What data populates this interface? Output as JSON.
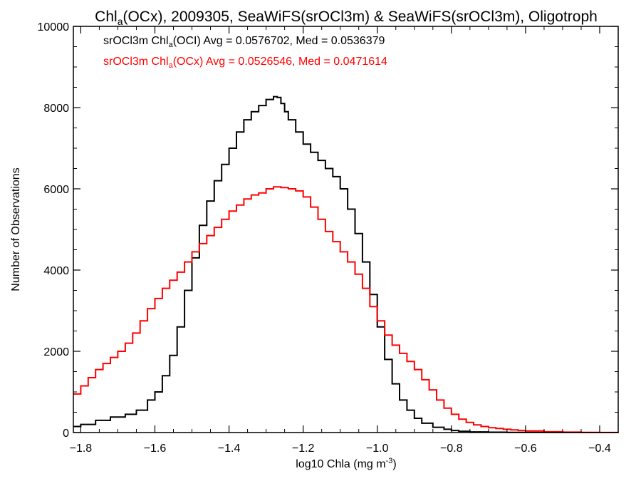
{
  "chart_data": {
    "type": "line",
    "title": {
      "part1": "Chl",
      "sub": "a",
      "part2": "(OCx), 2009305, SeaWiFS(srOCl3m) & SeaWiFS(srOCl3m), Oligotroph"
    },
    "xlabel": {
      "main": "log10 Chla (mg m",
      "sup": "-3",
      "end": ")"
    },
    "ylabel": "Number of Observations",
    "xlim": [
      -1.82,
      -0.35
    ],
    "ylim": [
      0,
      10000
    ],
    "x_ticks": [
      -1.8,
      -1.6,
      -1.4,
      -1.2,
      -1.0,
      -0.8,
      -0.6,
      -0.4
    ],
    "x_tick_labels": [
      "−1.8",
      "−1.6",
      "−1.4",
      "−1.2",
      "−1.0",
      "−0.8",
      "−0.6",
      "−0.4"
    ],
    "y_ticks": [
      0,
      2000,
      4000,
      6000,
      8000,
      10000
    ],
    "y_tick_labels": [
      "0",
      "2000",
      "4000",
      "6000",
      "8000",
      "10000"
    ],
    "grid": false,
    "legend_position": "top-left",
    "legend": [
      {
        "pre": "srOCl3m Chl",
        "sub": "a",
        "post": "(OCI) Avg = 0.0576702, Med = 0.0536379",
        "color": "#000000"
      },
      {
        "pre": "srOCl3m Chl",
        "sub": "a",
        "post": "(OCx) Avg = 0.0526546, Med = 0.0471614",
        "color": "#ff0000"
      }
    ],
    "series": [
      {
        "color": "#000000",
        "x": [
          -1.82,
          -1.8,
          -1.76,
          -1.72,
          -1.68,
          -1.65,
          -1.62,
          -1.6,
          -1.58,
          -1.56,
          -1.54,
          -1.52,
          -1.5,
          -1.48,
          -1.46,
          -1.44,
          -1.42,
          -1.4,
          -1.38,
          -1.36,
          -1.34,
          -1.32,
          -1.3,
          -1.28,
          -1.27,
          -1.26,
          -1.25,
          -1.24,
          -1.22,
          -1.2,
          -1.18,
          -1.16,
          -1.14,
          -1.12,
          -1.1,
          -1.08,
          -1.06,
          -1.04,
          -1.02,
          -1.0,
          -0.98,
          -0.96,
          -0.94,
          -0.92,
          -0.9,
          -0.88,
          -0.85,
          -0.82,
          -0.8,
          -0.78,
          -0.75,
          -0.7,
          -0.65,
          -0.6,
          -0.55,
          -0.5,
          -0.45,
          -0.4,
          -0.35
        ],
        "values": [
          150,
          200,
          300,
          380,
          450,
          550,
          800,
          1000,
          1400,
          1900,
          2600,
          3500,
          4300,
          5100,
          5700,
          6200,
          6600,
          7000,
          7400,
          7700,
          7900,
          8050,
          8200,
          8270,
          8250,
          8100,
          7900,
          7700,
          7400,
          7100,
          6900,
          6700,
          6500,
          6300,
          6000,
          5500,
          4900,
          4200,
          3400,
          2600,
          1800,
          1200,
          800,
          550,
          350,
          230,
          130,
          80,
          50,
          30,
          15,
          8,
          5,
          3,
          2,
          1,
          0,
          0,
          0
        ]
      },
      {
        "color": "#ff0000",
        "x": [
          -1.82,
          -1.8,
          -1.78,
          -1.76,
          -1.74,
          -1.72,
          -1.7,
          -1.68,
          -1.66,
          -1.64,
          -1.62,
          -1.6,
          -1.58,
          -1.56,
          -1.54,
          -1.52,
          -1.5,
          -1.48,
          -1.46,
          -1.44,
          -1.42,
          -1.4,
          -1.38,
          -1.36,
          -1.34,
          -1.32,
          -1.3,
          -1.28,
          -1.26,
          -1.24,
          -1.22,
          -1.2,
          -1.18,
          -1.16,
          -1.14,
          -1.12,
          -1.1,
          -1.08,
          -1.06,
          -1.04,
          -1.02,
          -1.0,
          -0.98,
          -0.96,
          -0.94,
          -0.92,
          -0.9,
          -0.88,
          -0.86,
          -0.84,
          -0.82,
          -0.8,
          -0.78,
          -0.76,
          -0.74,
          -0.72,
          -0.7,
          -0.68,
          -0.66,
          -0.64,
          -0.62,
          -0.6,
          -0.55,
          -0.5,
          -0.45,
          -0.4,
          -0.35
        ],
        "values": [
          950,
          1150,
          1350,
          1550,
          1700,
          1850,
          2000,
          2200,
          2450,
          2750,
          3050,
          3300,
          3550,
          3750,
          3950,
          4200,
          4450,
          4650,
          4850,
          5050,
          5250,
          5450,
          5600,
          5750,
          5850,
          5900,
          6000,
          6050,
          6030,
          6000,
          5950,
          5800,
          5550,
          5250,
          4950,
          4700,
          4450,
          4200,
          3900,
          3550,
          3100,
          2750,
          2400,
          2150,
          1950,
          1750,
          1550,
          1300,
          1050,
          800,
          600,
          450,
          330,
          250,
          190,
          150,
          120,
          100,
          80,
          65,
          50,
          40,
          20,
          10,
          5,
          2,
          0
        ]
      }
    ]
  }
}
